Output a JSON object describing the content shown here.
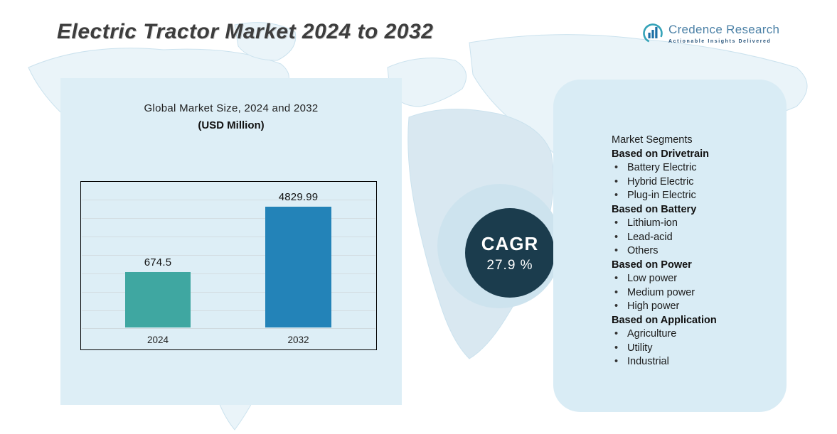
{
  "header": {
    "title": "Electric Tractor Market 2024 to 2032",
    "logo": {
      "name": "Credence Research",
      "tagline": "Actionable Insights Delivered"
    }
  },
  "chart_data": {
    "type": "bar",
    "title": "Global Market Size, 2024 and 2032",
    "subtitle": "(USD Million)",
    "categories": [
      "2024",
      "2032"
    ],
    "values": [
      674.5,
      4829.99
    ],
    "value_labels": [
      "674.5",
      "4829.99"
    ],
    "bar_colors": [
      "#3fa7a1",
      "#2383b8"
    ],
    "xlabel": "",
    "ylabel": "",
    "ylim": [
      0,
      5200
    ],
    "grid": true,
    "legend": "none",
    "display_heights_frac": [
      0.46,
      1.0
    ]
  },
  "cagr": {
    "label": "CAGR",
    "value": "27.9 %"
  },
  "segments": {
    "heading": "Market Segments",
    "groups": [
      {
        "label": "Based on Drivetrain",
        "items": [
          "Battery Electric",
          "Hybrid Electric",
          "Plug-in Electric"
        ]
      },
      {
        "label": "Based on Battery",
        "items": [
          "Lithium-ion",
          "Lead-acid",
          "Others"
        ]
      },
      {
        "label": "Based on Power",
        "items": [
          "Low power",
          "Medium power",
          "High power"
        ]
      },
      {
        "label": "Based on Application",
        "items": [
          "Agriculture",
          "Utility",
          "Industrial"
        ]
      }
    ]
  },
  "colors": {
    "accent_teal": "#3fa7a1",
    "accent_blue": "#2383b8",
    "chart_panel": "#ddeef6",
    "segments_panel": "#d9ecf5",
    "cagr_circle": "#1b3c4d",
    "crescent": "#cde3ee"
  }
}
